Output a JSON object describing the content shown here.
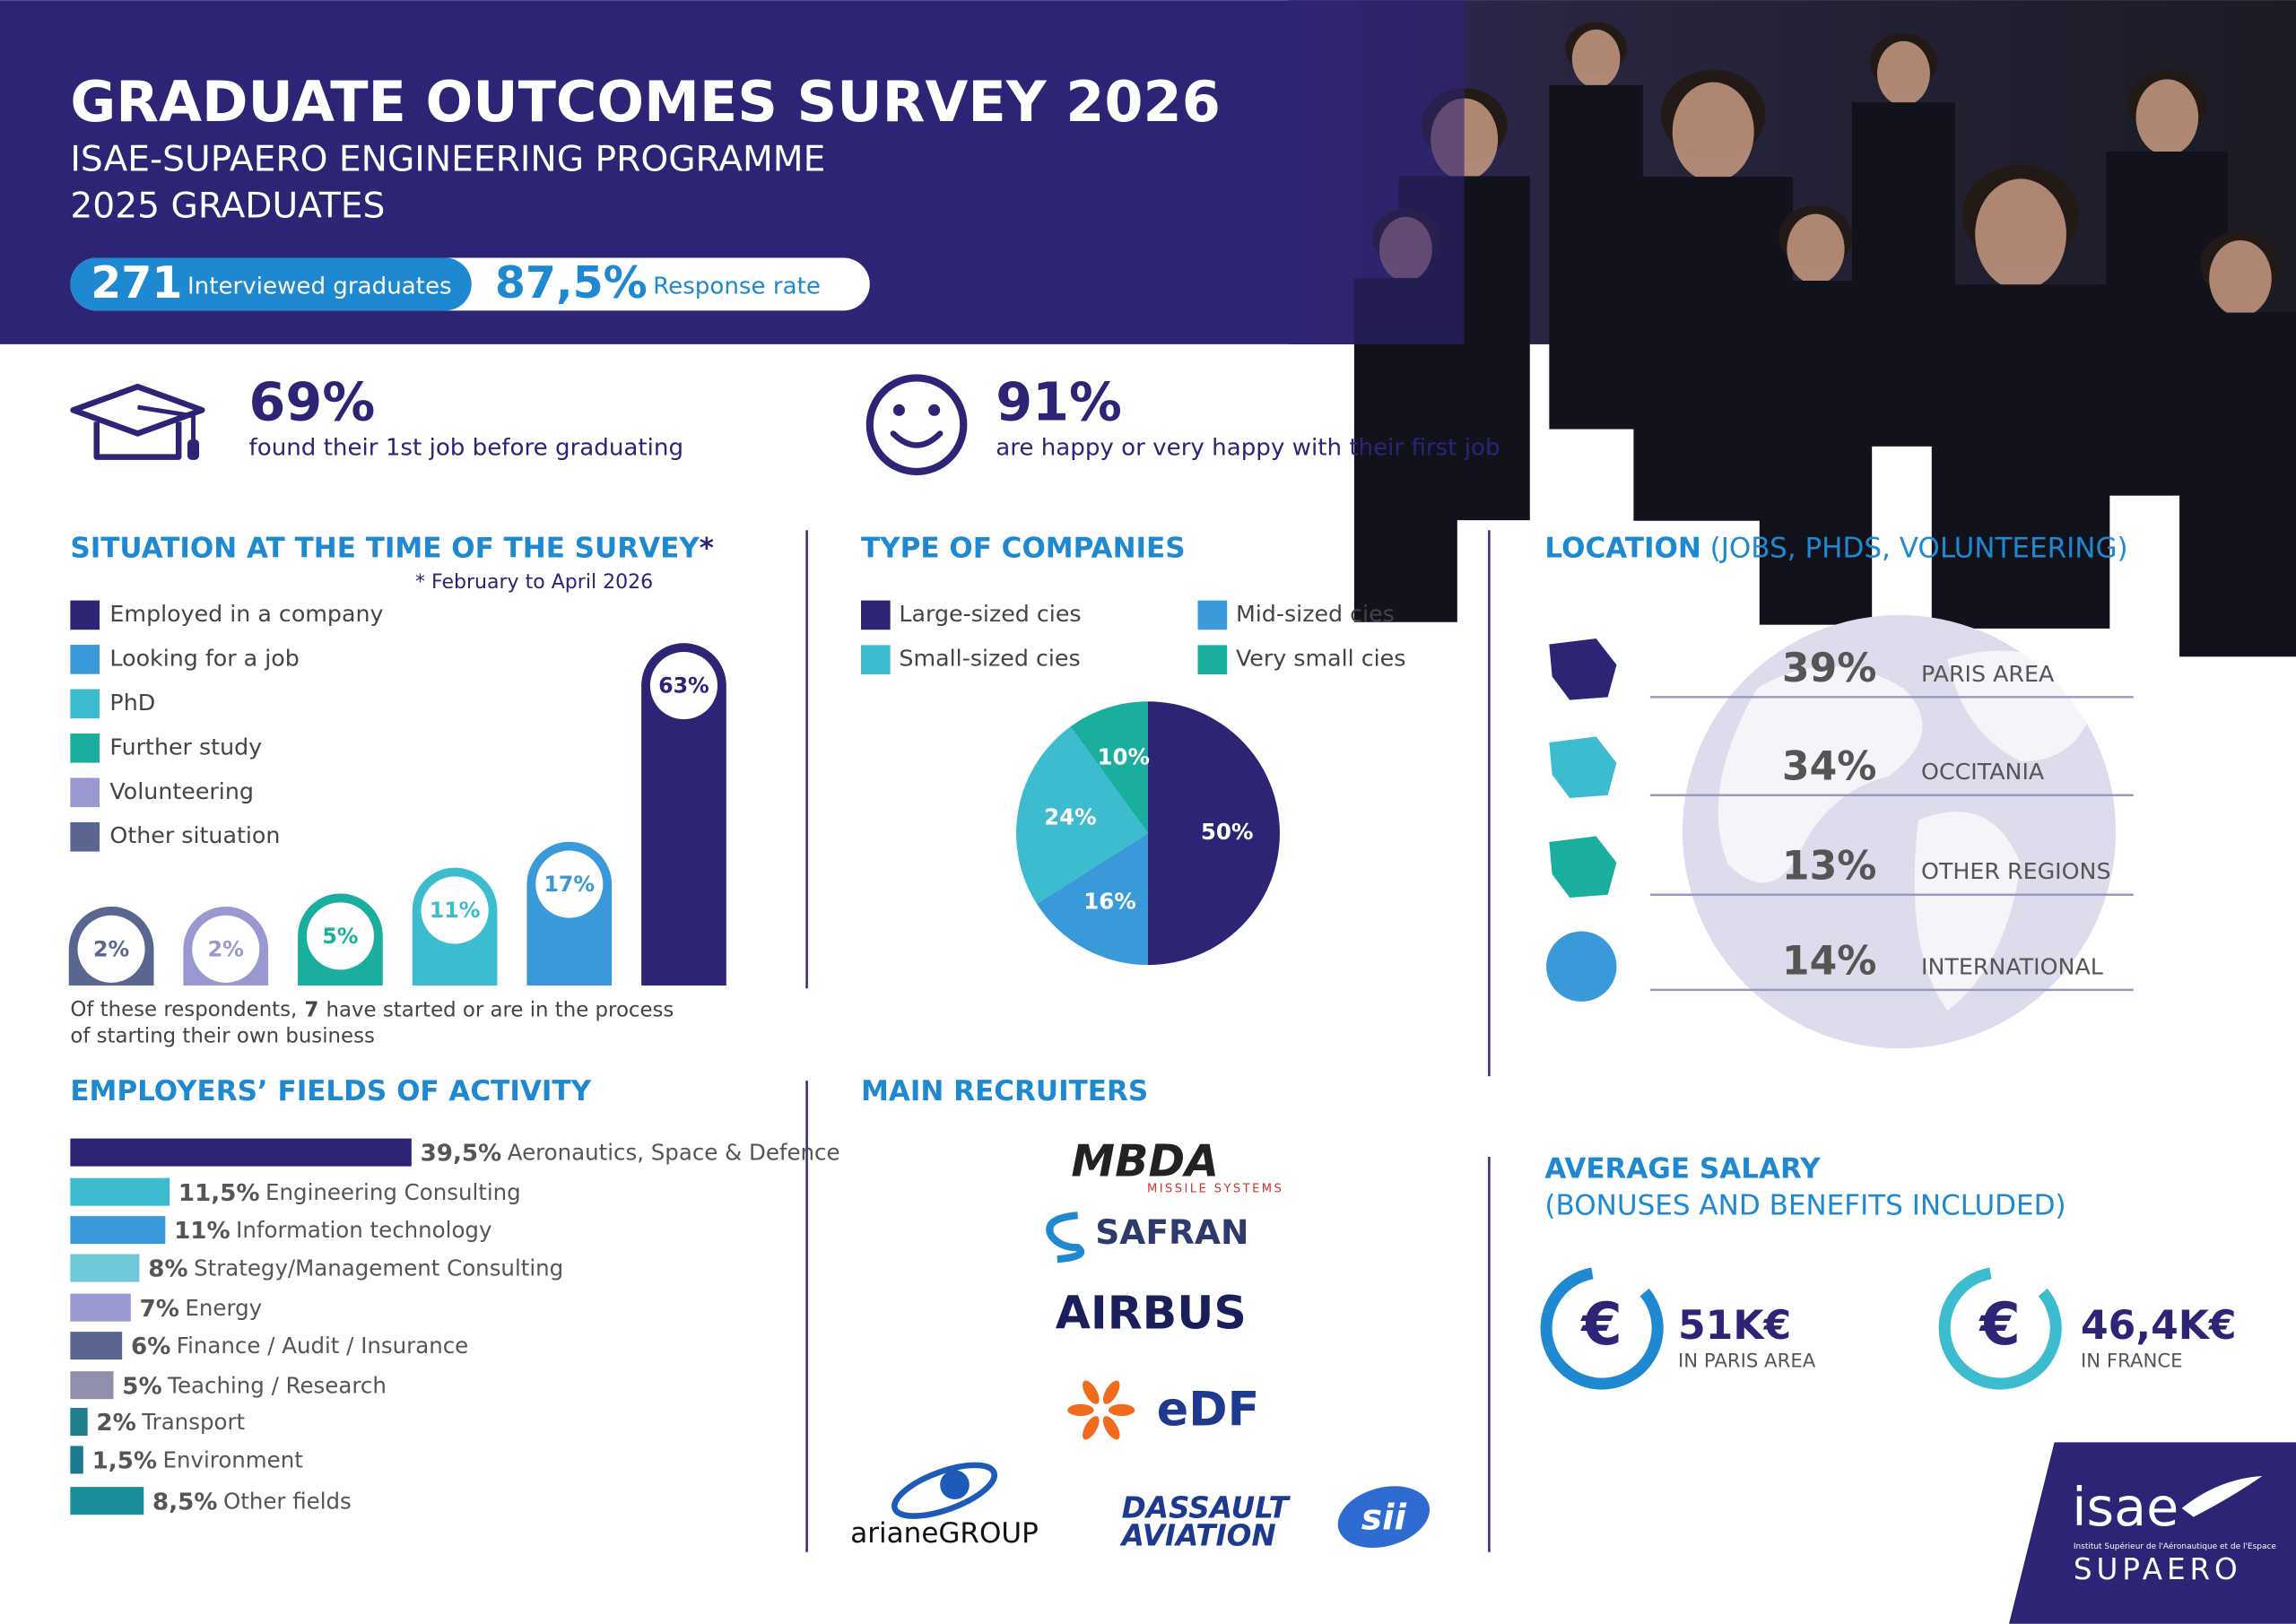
{
  "header": {
    "title": "GRADUATE OUTCOMES SURVEY 2026",
    "subtitle_1": "ISAE-SUPAERO ENGINEERING PROGRAMME",
    "subtitle_2": "2025 GRADUATES",
    "interviewed": {
      "value": "271",
      "label": "Interviewed graduates"
    },
    "response_rate": {
      "value": "87,5%",
      "label": "Response rate"
    }
  },
  "highlights": [
    {
      "value": "69%",
      "text": "found their 1st job before graduating"
    },
    {
      "value": "91%",
      "text": "are happy or very happy with their first job"
    }
  ],
  "chart_data": [
    {
      "type": "pillbar",
      "title": "SITUATION AT THE TIME OF THE SURVEY",
      "title_mark": "*",
      "footnote": "* February to April 2026",
      "categories": [
        "Employed in a company",
        "Looking for a job",
        "PhD",
        "Further study",
        "Volunteering",
        "Other situation"
      ],
      "values": [
        63,
        17,
        11,
        5,
        2,
        2
      ],
      "value_labels": [
        "63%",
        "17%",
        "11%",
        "5%",
        "2%",
        "2%"
      ],
      "colors": [
        "#2e2475",
        "#3a9ad9",
        "#3dbccf",
        "#1aae9f",
        "#9a98d0",
        "#5a6690"
      ],
      "note_before": "Of these respondents,",
      "note_number": 7,
      "note_after": "have started or are in the process",
      "note_line_2": "of starting their own business"
    },
    {
      "type": "pie",
      "title": "TYPE OF COMPANIES",
      "categories": [
        "Large-sized cies",
        "Mid-sized cies",
        "Small-sized cies",
        "Very small cies"
      ],
      "values": [
        50,
        16,
        24,
        10
      ],
      "value_labels": [
        "50%",
        "16%",
        "24%",
        "10%"
      ],
      "colors": [
        "#2e2475",
        "#3a9ad9",
        "#3dbccf",
        "#1aae9f"
      ]
    },
    {
      "type": "hbar",
      "title": "EMPLOYERS’ FIELDS OF ACTIVITY",
      "categories": [
        "Aeronautics, Space & Defence",
        "Engineering Consulting",
        "Information technology",
        "Strategy/Management Consulting",
        "Energy",
        "Finance / Audit / Insurance",
        "Teaching / Research",
        "Transport",
        "Environment",
        "Other fields"
      ],
      "values": [
        39.5,
        11.5,
        11,
        8,
        7,
        6,
        5,
        2,
        1.5,
        8.5
      ],
      "value_labels": [
        "39,5%",
        "11,5%",
        "11%",
        "8%",
        "7%",
        "6%",
        "5%",
        "2%",
        "1,5%",
        "8,5%"
      ],
      "colors": [
        "#2e2475",
        "#3dbccf",
        "#3a9ad9",
        "#6ec8d8",
        "#9a98d0",
        "#5a6690",
        "#9090ad",
        "#1f7f8f",
        "#1a7a8f",
        "#1a8f99"
      ]
    }
  ],
  "location": {
    "title": "LOCATION",
    "title_note": "(JOBS, PHDS, VOLUNTEERING)",
    "items": [
      {
        "value": "39%",
        "label": "PARIS AREA"
      },
      {
        "value": "34%",
        "label": "OCCITANIA"
      },
      {
        "value": "13%",
        "label": "OTHER REGIONS"
      },
      {
        "value": "14%",
        "label": "INTERNATIONAL"
      }
    ]
  },
  "recruiters": {
    "title": "MAIN RECRUITERS",
    "logos": {
      "mbda": "MBDA",
      "mbda_sub": "MISSILE SYSTEMS",
      "safran": "SAFRAN",
      "airbus": "AIRBUS",
      "edf": "eDF",
      "ariane": "arianeGROUP",
      "dassault_1": "DASSAULT",
      "dassault_2": "AVIATION",
      "sii": "sii"
    }
  },
  "salary": {
    "title_1": "AVERAGE SALARY",
    "title_2": "(BONUSES AND BENEFITS INCLUDED)",
    "items": [
      {
        "symbol": "€",
        "amount": "51K€",
        "label": "IN PARIS AREA"
      },
      {
        "symbol": "€",
        "amount": "46,4K€",
        "label": "IN FRANCE"
      }
    ]
  },
  "logo": {
    "name": "isae",
    "full": "Institut Supérieur de l'Aéronautique et de l'Espace",
    "sub": "SUPAERO"
  }
}
